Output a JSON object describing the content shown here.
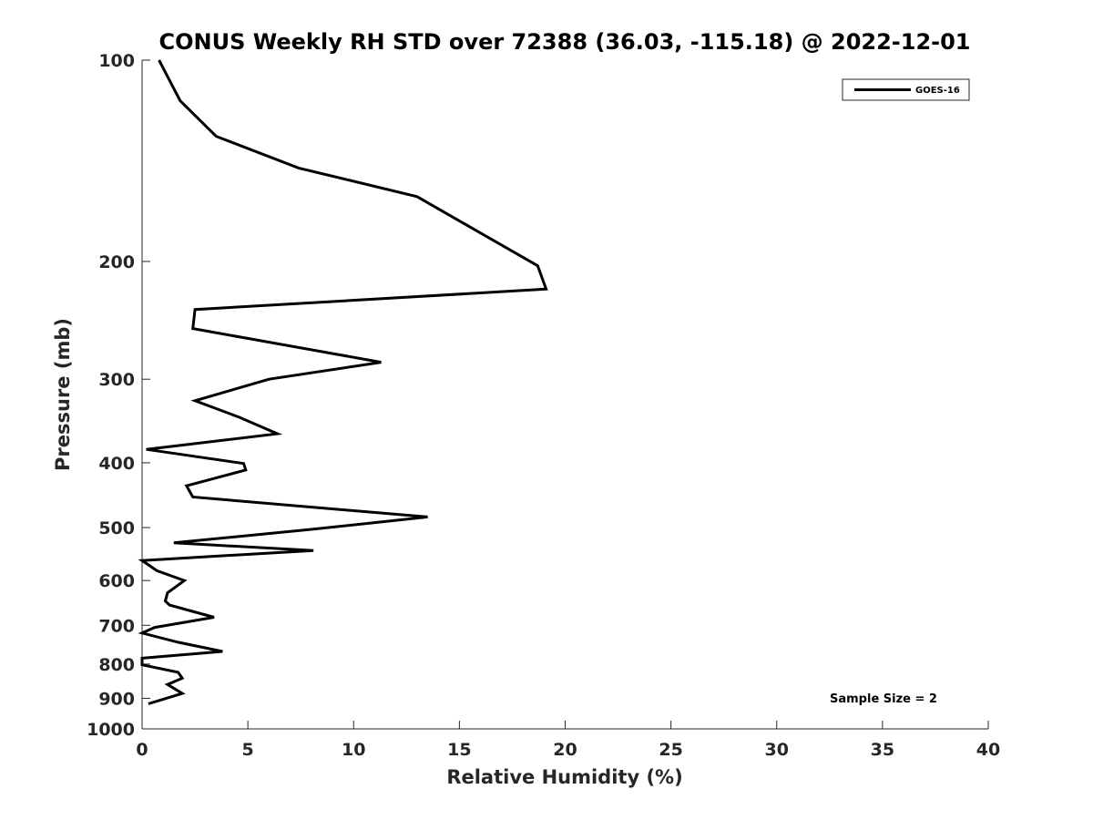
{
  "chart_data": {
    "type": "line",
    "title": "CONUS Weekly RH STD over 72388 (36.03, -115.18) @ 2022-12-01",
    "xlabel": "Relative Humidity (%)",
    "ylabel": "Pressure (mb)",
    "xlim": [
      0,
      40
    ],
    "ylim": [
      100,
      1000
    ],
    "y_scale": "log",
    "y_reversed": true,
    "grid": false,
    "legend_position": "top-right",
    "x_ticks": [
      "0",
      "5",
      "10",
      "15",
      "20",
      "25",
      "30",
      "35",
      "40"
    ],
    "y_ticks": [
      "100",
      "200",
      "300",
      "400",
      "500",
      "600",
      "700",
      "800",
      "900",
      "1000"
    ],
    "series": [
      {
        "name": "GOES-16",
        "color": "#000000",
        "x": [
          0.8,
          1.8,
          3.5,
          7.4,
          13.0,
          18.7,
          19.1,
          2.5,
          2.4,
          11.3,
          6.0,
          2.5,
          4.6,
          6.4,
          0.2,
          4.8,
          4.9,
          2.1,
          2.4,
          13.5,
          8.0,
          1.5,
          8.1,
          0.0,
          0.7,
          2.0,
          1.2,
          1.1,
          1.3,
          3.4,
          0.6,
          0.0,
          1.7,
          3.8,
          0.0,
          0.0,
          1.7,
          1.9,
          1.2,
          1.9,
          0.3
        ],
        "y": [
          100,
          115,
          130,
          145,
          160,
          203,
          220,
          236,
          252,
          283,
          300,
          323,
          342,
          362,
          382,
          401,
          410,
          433,
          450,
          482,
          503,
          527,
          541,
          560,
          580,
          600,
          626,
          644,
          653,
          681,
          705,
          719,
          742,
          766,
          784,
          802,
          823,
          840,
          858,
          885,
          917
        ]
      }
    ],
    "annotation": "Sample Size = 2"
  }
}
